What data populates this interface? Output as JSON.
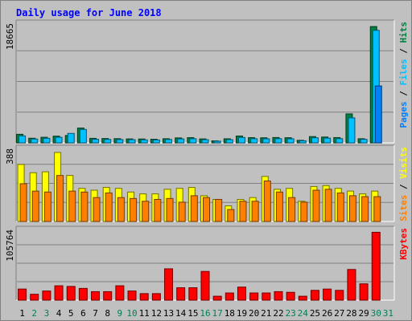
{
  "chart_data": {
    "type": "bar",
    "title": "Daily usage for June 2018",
    "days": [
      "1",
      "2",
      "3",
      "4",
      "5",
      "6",
      "7",
      "8",
      "9",
      "10",
      "11",
      "12",
      "13",
      "14",
      "15",
      "16",
      "17",
      "18",
      "19",
      "20",
      "21",
      "22",
      "23",
      "24",
      "25",
      "26",
      "27",
      "28",
      "29",
      "30",
      "31"
    ],
    "weekend_days": [
      "2",
      "3",
      "9",
      "10",
      "16",
      "17",
      "23",
      "24",
      "30",
      "31"
    ],
    "panels": [
      {
        "max_label": "18665",
        "ymax": 18665,
        "legend": [
          "Pages",
          "Files",
          "Hits"
        ],
        "series": [
          {
            "name": "Hits",
            "color": "#008040",
            "values": [
              1350,
              730,
              880,
              1060,
              1160,
              2340,
              710,
              680,
              660,
              620,
              610,
              570,
              650,
              780,
              820,
              620,
              310,
              640,
              1080,
              820,
              800,
              840,
              810,
              400,
              990,
              920,
              830,
              4580,
              650,
              18400,
              0
            ]
          },
          {
            "name": "Files",
            "color": "#00c0ff",
            "values": [
              1100,
              600,
              720,
              880,
              1490,
              2120,
              560,
              540,
              520,
              500,
              470,
              460,
              530,
              620,
              650,
              500,
              260,
              510,
              850,
              650,
              640,
              660,
              640,
              330,
              800,
              750,
              660,
              3950,
              550,
              17800,
              0
            ]
          },
          {
            "name": "Pages",
            "color": "#0080ff",
            "values": [
              0,
              0,
              0,
              0,
              0,
              0,
              0,
              0,
              0,
              0,
              0,
              0,
              0,
              0,
              0,
              0,
              0,
              0,
              0,
              0,
              0,
              0,
              0,
              0,
              0,
              0,
              0,
              0,
              0,
              9000,
              0
            ]
          }
        ]
      },
      {
        "max_label": "388",
        "ymax": 388,
        "legend": [
          "Sites",
          "Visits"
        ],
        "series": [
          {
            "name": "Visits",
            "color": "#ffff00",
            "values": [
              310,
              265,
              270,
              375,
              250,
              180,
              170,
              185,
              180,
              160,
              150,
              150,
              175,
              180,
              185,
              140,
              120,
              85,
              120,
              130,
              245,
              175,
              180,
              110,
              190,
              195,
              180,
              165,
              150,
              165,
              0
            ]
          },
          {
            "name": "Sites",
            "color": "#ff8000",
            "values": [
              205,
              165,
              160,
              250,
              165,
              160,
              130,
              155,
              130,
              125,
              110,
              120,
              125,
              105,
              140,
              130,
              120,
              65,
              110,
              110,
              220,
              160,
              130,
              105,
              170,
              175,
              155,
              140,
              135,
              135,
              0
            ]
          }
        ]
      },
      {
        "max_label": "105764",
        "ymax": 105764,
        "legend": [
          "KBytes"
        ],
        "series": [
          {
            "name": "KBytes",
            "color": "#ff0000",
            "values": [
              17000,
              9000,
              14000,
              22000,
              21000,
              18000,
              13000,
              13000,
              22000,
              14000,
              10000,
              10000,
              48000,
              19000,
              19000,
              44000,
              6000,
              11000,
              20000,
              11000,
              11000,
              13000,
              12000,
              6000,
              15000,
              17000,
              15000,
              47000,
              25000,
              104000,
              0
            ]
          }
        ]
      }
    ]
  }
}
